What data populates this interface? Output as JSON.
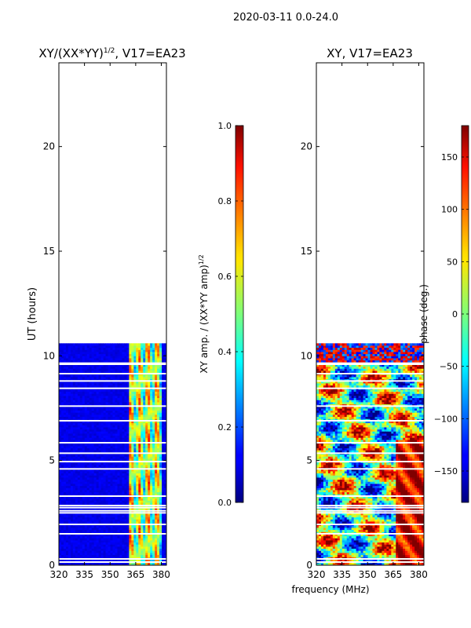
{
  "suptitle": "2020-03-11 0.0-24.0",
  "xlabel": "frequency (MHz)",
  "chart_data": [
    {
      "type": "heatmap",
      "title": "XY/(XX*YY)^{1/2}, V17=EA23",
      "title_main": "XY/(XX*YY)",
      "title_sup": "1/2",
      "title_tail": ", V17=EA23",
      "xlabel": "frequency (MHz)",
      "ylabel": "UT (hours)",
      "xlim": [
        320,
        383
      ],
      "ylim": [
        0,
        24
      ],
      "xticks": [
        320,
        335,
        350,
        365,
        380
      ],
      "yticks": [
        0,
        5,
        10,
        15,
        20
      ],
      "data_ut_range": [
        0,
        10.6
      ],
      "bright_band_mhz": [
        361,
        380
      ],
      "colorbar": {
        "label": "XY amp. / (XX*YY amp)^{1/2}",
        "label_main": "XY amp. / (XX*YY amp)",
        "label_sup": "1/2",
        "range": [
          0.0,
          1.0
        ],
        "ticks": [
          "0.0",
          "0.2",
          "0.4",
          "0.6",
          "0.8",
          "1.0"
        ],
        "colormap": "jet"
      }
    },
    {
      "type": "heatmap",
      "title": "XY, V17=EA23",
      "xlabel": "frequency (MHz)",
      "ylabel": "",
      "xlim": [
        320,
        383
      ],
      "ylim": [
        0,
        24
      ],
      "xticks": [
        320,
        335,
        350,
        365,
        380
      ],
      "yticks": [
        0,
        5,
        10,
        15,
        20
      ],
      "data_ut_range": [
        0,
        10.6
      ],
      "colorbar": {
        "label": "phase (deg.)",
        "range": [
          -180,
          180
        ],
        "ticks": [
          "−150",
          "−100",
          "−50",
          "0",
          "50",
          "100",
          "150"
        ],
        "tick_values": [
          -150,
          -100,
          -50,
          0,
          50,
          100,
          150
        ],
        "colormap": "jet"
      }
    }
  ]
}
